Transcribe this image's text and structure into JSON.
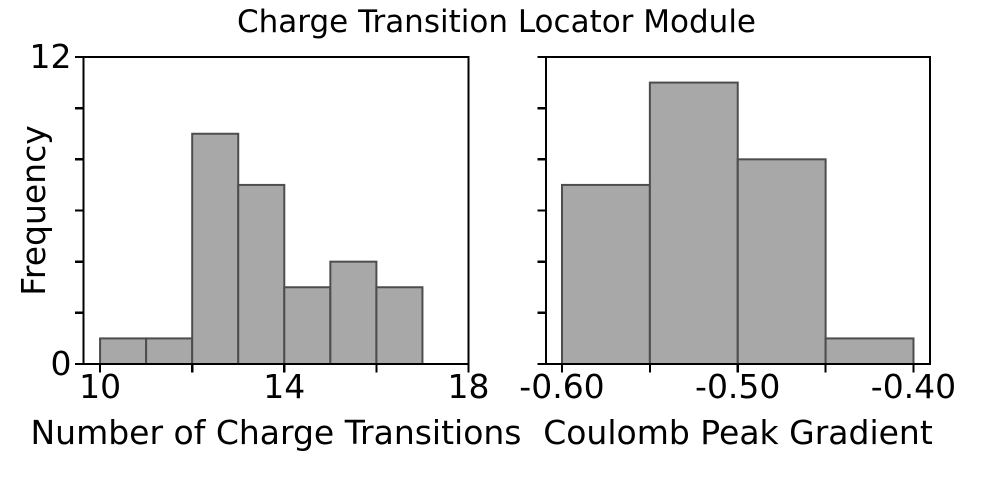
{
  "figure": {
    "title": "Charge Transition Locator Module"
  },
  "colors": {
    "background": "#ffffff",
    "bar_fill": "#a8a8a8",
    "bar_edge": "#4d4d4d",
    "axis": "#000000",
    "text": "#000000"
  },
  "chart_data": [
    {
      "type": "bar",
      "name": "charge-transitions-histogram",
      "title": "",
      "xlabel": "Number of Charge Transitions",
      "ylabel": "Frequency",
      "bin_edges": [
        10,
        11,
        12,
        13,
        14,
        15,
        16,
        17
      ],
      "values": [
        1,
        1,
        9,
        7,
        3,
        4,
        3
      ],
      "xlim": [
        9.64,
        18.0
      ],
      "ylim": [
        0,
        12
      ],
      "xticks": [
        10,
        12,
        14,
        16,
        18
      ],
      "xtick_labels": [
        "10",
        "",
        "14",
        "",
        "18"
      ],
      "yticks": [
        0,
        2,
        4,
        6,
        8,
        10,
        12
      ],
      "ytick_labels": [
        "0",
        "",
        "",
        "",
        "",
        "",
        "12"
      ],
      "grid": false,
      "legend": null
    },
    {
      "type": "bar",
      "name": "coulomb-peak-gradient-histogram",
      "title": "",
      "xlabel": "Coulomb Peak Gradient",
      "ylabel": "",
      "bin_edges": [
        -0.6,
        -0.55,
        -0.5,
        -0.45,
        -0.4
      ],
      "values": [
        7,
        11,
        8,
        1
      ],
      "xlim": [
        -0.6091,
        -0.3906
      ],
      "ylim": [
        0,
        12
      ],
      "xticks": [
        -0.6,
        -0.55,
        -0.5,
        -0.45,
        -0.4
      ],
      "xtick_labels": [
        "-0.60",
        "",
        "-0.50",
        "",
        "-0.40"
      ],
      "yticks": [
        0,
        2,
        4,
        6,
        8,
        10,
        12
      ],
      "ytick_labels": [
        "",
        "",
        "",
        "",
        "",
        "",
        ""
      ],
      "grid": false,
      "legend": null
    }
  ]
}
